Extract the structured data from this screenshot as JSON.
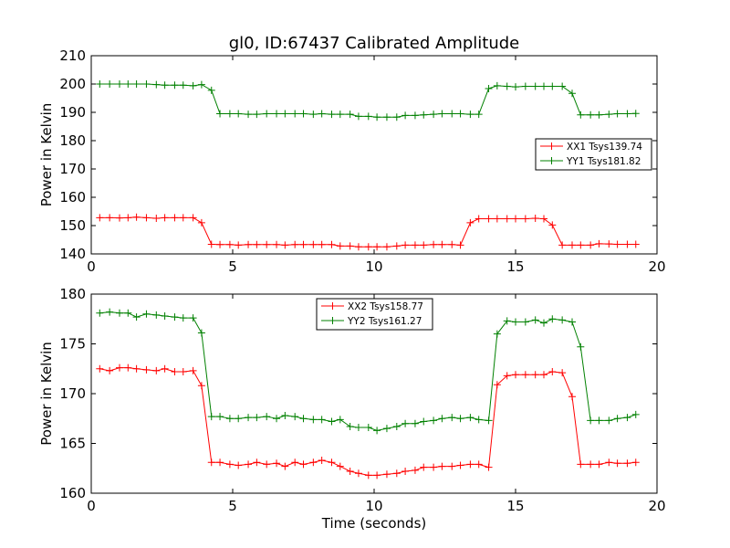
{
  "chart_data": [
    {
      "type": "line",
      "title": "gl0, ID:67437 Calibrated Amplitude",
      "xlabel": "",
      "ylabel": "Power in Kelvin",
      "xlim": [
        0,
        20
      ],
      "ylim": [
        140,
        210
      ],
      "xticks": [
        "0",
        "5",
        "10",
        "15",
        "20"
      ],
      "yticks": [
        "140",
        "150",
        "160",
        "170",
        "180",
        "190",
        "200",
        "210"
      ],
      "legend_position": "center-right",
      "x": [
        0.3,
        0.65,
        1.0,
        1.3,
        1.6,
        1.95,
        2.3,
        2.6,
        2.95,
        3.25,
        3.6,
        3.9,
        4.25,
        4.55,
        4.9,
        5.2,
        5.55,
        5.85,
        6.2,
        6.55,
        6.85,
        7.2,
        7.5,
        7.85,
        8.15,
        8.5,
        8.8,
        9.15,
        9.45,
        9.8,
        10.1,
        10.45,
        10.8,
        11.1,
        11.45,
        11.75,
        12.1,
        12.4,
        12.75,
        13.05,
        13.4,
        13.7,
        14.05,
        14.35,
        14.7,
        15.0,
        15.35,
        15.7,
        16.0,
        16.3,
        16.65,
        17.0,
        17.3,
        17.65,
        17.95,
        18.3,
        18.6,
        18.95,
        19.25
      ],
      "series": [
        {
          "name": "XX1 Tsys139.74",
          "color": "#ff0000",
          "values": [
            152.8,
            152.8,
            152.7,
            152.8,
            153.0,
            152.8,
            152.6,
            152.8,
            152.8,
            152.8,
            152.8,
            151.0,
            143.4,
            143.3,
            143.3,
            143.1,
            143.3,
            143.3,
            143.3,
            143.3,
            143.1,
            143.3,
            143.3,
            143.3,
            143.3,
            143.3,
            142.8,
            142.8,
            142.5,
            142.5,
            142.5,
            142.5,
            142.8,
            143.1,
            143.1,
            143.1,
            143.3,
            143.3,
            143.3,
            143.1,
            151.0,
            152.4,
            152.4,
            152.4,
            152.4,
            152.4,
            152.4,
            152.6,
            152.4,
            150.2,
            143.1,
            143.1,
            143.1,
            143.1,
            143.6,
            143.5,
            143.4,
            143.4,
            143.4
          ]
        },
        {
          "name": "YY1 Tsys181.82",
          "color": "#008000",
          "values": [
            200.0,
            200.0,
            200.0,
            200.0,
            200.0,
            200.0,
            199.8,
            199.6,
            199.6,
            199.6,
            199.4,
            199.8,
            197.8,
            189.5,
            189.5,
            189.5,
            189.3,
            189.3,
            189.5,
            189.5,
            189.5,
            189.5,
            189.5,
            189.3,
            189.5,
            189.3,
            189.3,
            189.3,
            188.6,
            188.6,
            188.3,
            188.3,
            188.3,
            188.9,
            188.9,
            189.1,
            189.3,
            189.5,
            189.5,
            189.5,
            189.3,
            189.3,
            198.4,
            199.4,
            199.2,
            199.0,
            199.2,
            199.2,
            199.2,
            199.2,
            199.2,
            196.7,
            189.1,
            189.1,
            189.1,
            189.3,
            189.5,
            189.5,
            189.6
          ]
        }
      ]
    },
    {
      "type": "line",
      "title": "",
      "xlabel": "Time (seconds)",
      "ylabel": "Power in Kelvin",
      "xlim": [
        0,
        20
      ],
      "ylim": [
        160,
        180
      ],
      "xticks": [
        "0",
        "5",
        "10",
        "15",
        "20"
      ],
      "yticks": [
        "160",
        "165",
        "170",
        "175",
        "180"
      ],
      "legend_position": "upper-center",
      "x": [
        0.3,
        0.65,
        1.0,
        1.3,
        1.6,
        1.95,
        2.3,
        2.6,
        2.95,
        3.25,
        3.6,
        3.9,
        4.25,
        4.55,
        4.9,
        5.2,
        5.55,
        5.85,
        6.2,
        6.55,
        6.85,
        7.2,
        7.5,
        7.85,
        8.15,
        8.5,
        8.8,
        9.15,
        9.45,
        9.8,
        10.1,
        10.45,
        10.8,
        11.1,
        11.45,
        11.75,
        12.1,
        12.4,
        12.75,
        13.05,
        13.4,
        13.7,
        14.05,
        14.35,
        14.7,
        15.0,
        15.35,
        15.7,
        16.0,
        16.3,
        16.65,
        17.0,
        17.3,
        17.65,
        17.95,
        18.3,
        18.6,
        18.95,
        19.25
      ],
      "series": [
        {
          "name": "XX2 Tsys158.77",
          "color": "#ff0000",
          "values": [
            172.5,
            172.3,
            172.6,
            172.6,
            172.5,
            172.4,
            172.3,
            172.5,
            172.2,
            172.2,
            172.3,
            170.8,
            163.1,
            163.1,
            162.9,
            162.8,
            162.9,
            163.1,
            162.9,
            163.0,
            162.7,
            163.1,
            162.9,
            163.1,
            163.3,
            163.1,
            162.7,
            162.2,
            162.0,
            161.8,
            161.8,
            161.9,
            162.0,
            162.2,
            162.3,
            162.6,
            162.6,
            162.7,
            162.7,
            162.8,
            162.9,
            162.9,
            162.6,
            170.9,
            171.8,
            171.9,
            171.9,
            171.9,
            171.9,
            172.2,
            172.1,
            169.7,
            162.9,
            162.9,
            162.9,
            163.1,
            163.0,
            163.0,
            163.1
          ]
        },
        {
          "name": "YY2 Tsys161.27",
          "color": "#008000",
          "values": [
            178.1,
            178.2,
            178.1,
            178.1,
            177.7,
            178.0,
            177.9,
            177.8,
            177.7,
            177.6,
            177.6,
            176.1,
            167.7,
            167.7,
            167.5,
            167.5,
            167.6,
            167.6,
            167.7,
            167.5,
            167.8,
            167.7,
            167.5,
            167.4,
            167.4,
            167.2,
            167.4,
            166.7,
            166.6,
            166.6,
            166.3,
            166.5,
            166.7,
            167.0,
            167.0,
            167.2,
            167.3,
            167.5,
            167.6,
            167.5,
            167.6,
            167.4,
            167.3,
            176.0,
            177.3,
            177.2,
            177.2,
            177.4,
            177.1,
            177.5,
            177.4,
            177.2,
            174.7,
            167.3,
            167.3,
            167.3,
            167.5,
            167.6,
            167.9
          ]
        }
      ]
    }
  ]
}
